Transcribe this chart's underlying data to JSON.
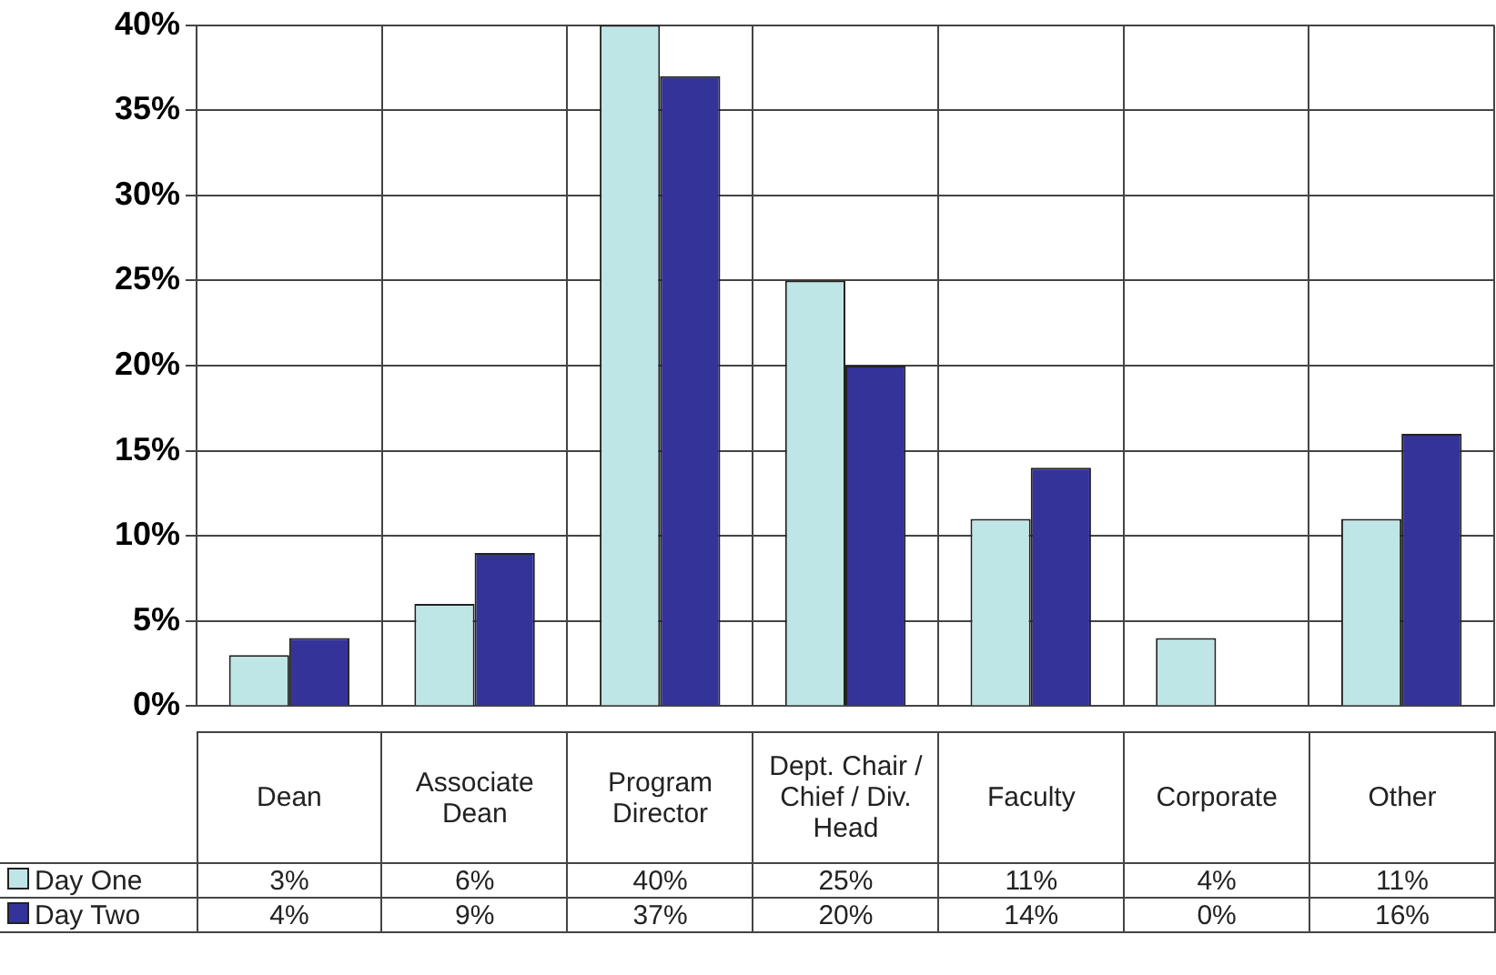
{
  "chart_data": {
    "type": "bar",
    "categories": [
      "Dean",
      "Associate Dean",
      "Program Director",
      "Dept. Chair / Chief / Div. Head",
      "Faculty",
      "Corporate",
      "Other"
    ],
    "series": [
      {
        "name": "Day One",
        "color": "#bfe6e6",
        "values": [
          3,
          6,
          40,
          25,
          11,
          4,
          11
        ],
        "value_labels": [
          "3%",
          "6%",
          "40%",
          "25%",
          "11%",
          "4%",
          "11%"
        ]
      },
      {
        "name": "Day Two",
        "color": "#333399",
        "values": [
          4,
          9,
          37,
          20,
          14,
          0,
          16
        ],
        "value_labels": [
          "4%",
          "9%",
          "37%",
          "20%",
          "14%",
          "0%",
          "16%"
        ]
      }
    ],
    "ylim": [
      0,
      40
    ],
    "yticks": [
      {
        "value": 0,
        "label": "0%"
      },
      {
        "value": 5,
        "label": "5%"
      },
      {
        "value": 10,
        "label": "10%"
      },
      {
        "value": 15,
        "label": "15%"
      },
      {
        "value": 20,
        "label": "20%"
      },
      {
        "value": 25,
        "label": "25%"
      },
      {
        "value": 30,
        "label": "30%"
      },
      {
        "value": 35,
        "label": "35%"
      },
      {
        "value": 40,
        "label": "40%"
      }
    ],
    "grid": true,
    "legend": "bottom left"
  }
}
